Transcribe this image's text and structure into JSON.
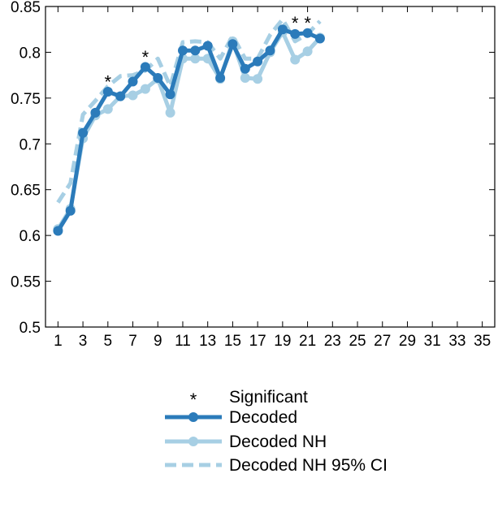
{
  "chart_data": {
    "type": "line",
    "title": "",
    "xlabel": "",
    "ylabel": "",
    "xlim": [
      0,
      36
    ],
    "ylim": [
      0.5,
      0.85
    ],
    "grid": false,
    "x_ticks": [
      1,
      3,
      5,
      7,
      9,
      11,
      13,
      15,
      17,
      19,
      21,
      23,
      25,
      27,
      29,
      31,
      33,
      35
    ],
    "x_tick_labels": [
      "1",
      "3",
      "5",
      "7",
      "9",
      "11",
      "13",
      "15",
      "17",
      "19",
      "21",
      "23",
      "25",
      "27",
      "29",
      "31",
      "33",
      "35"
    ],
    "y_ticks": [
      0.5,
      0.55,
      0.6,
      0.65,
      0.7,
      0.75,
      0.8,
      0.85
    ],
    "y_tick_labels": [
      "0.5",
      "0.55",
      "0.6",
      "0.65",
      "0.7",
      "0.75",
      "0.8",
      "0.85"
    ],
    "legend_position": "bottom-center",
    "x": [
      1,
      2,
      3,
      4,
      5,
      6,
      7,
      8,
      9,
      10,
      11,
      12,
      13,
      14,
      15,
      16,
      17,
      18,
      19,
      20,
      21,
      22
    ],
    "series": [
      {
        "name": "Decoded",
        "color": "#2b7bba",
        "style": "solid-marker",
        "values": [
          0.605,
          0.627,
          0.712,
          0.734,
          0.757,
          0.752,
          0.768,
          0.784,
          0.772,
          0.754,
          0.802,
          0.802,
          0.807,
          0.772,
          0.809,
          0.782,
          0.79,
          0.802,
          0.825,
          0.82,
          0.821,
          0.815
        ]
      },
      {
        "name": "Decoded NH",
        "color": "#a7cfe4",
        "style": "solid-marker",
        "values": [
          0.607,
          0.629,
          0.706,
          0.731,
          0.738,
          0.752,
          0.753,
          0.76,
          0.771,
          0.734,
          0.793,
          0.793,
          0.793,
          0.771,
          0.812,
          0.772,
          0.771,
          0.8,
          0.822,
          0.792,
          0.801,
          0.816
        ]
      },
      {
        "name": "Decoded NH 95% CI",
        "color": "#a7cfe4",
        "style": "dashed",
        "values": [
          0.636,
          0.657,
          0.732,
          0.747,
          0.763,
          0.774,
          0.775,
          0.78,
          0.793,
          0.763,
          0.811,
          0.812,
          0.811,
          0.793,
          0.818,
          0.793,
          0.793,
          0.819,
          0.836,
          0.812,
          0.82,
          0.834
        ]
      }
    ],
    "significant": {
      "name": "Significant",
      "marker": "*",
      "x": [
        5,
        8,
        20,
        21
      ],
      "y": [
        0.769,
        0.796,
        0.833,
        0.833
      ]
    }
  }
}
